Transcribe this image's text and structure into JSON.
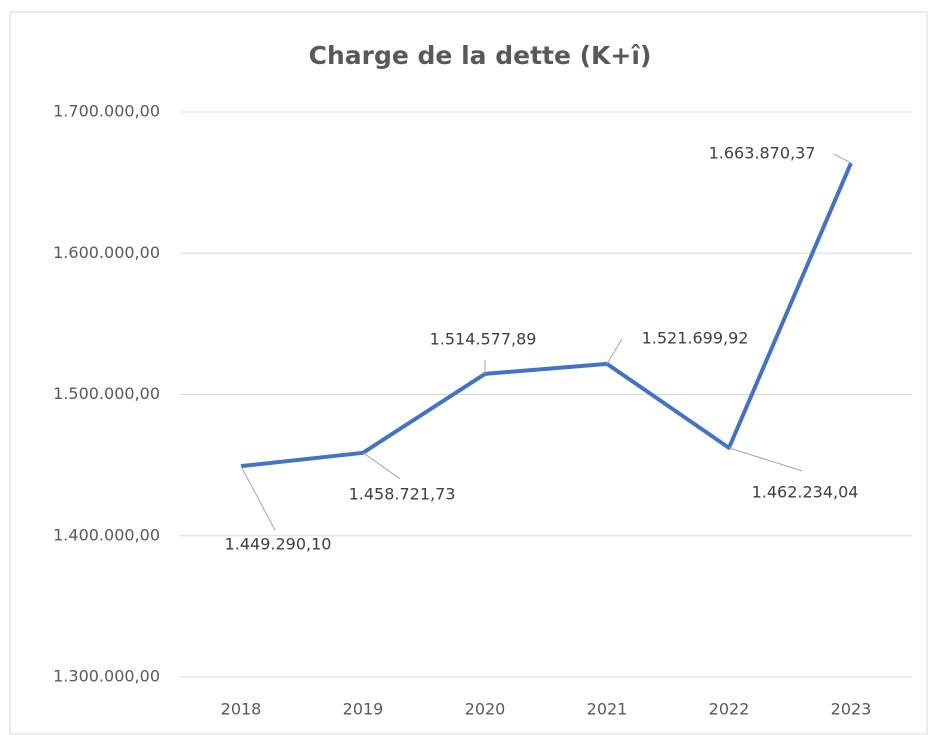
{
  "chart_data": {
    "type": "line",
    "title": "Charge de la dette (K+î)",
    "categories": [
      "2018",
      "2019",
      "2020",
      "2021",
      "2022",
      "2023"
    ],
    "series": [
      {
        "name": "Charge de la dette (K+î)",
        "color": "#4472c4",
        "values": [
          1449290.1,
          1458721.73,
          1514577.89,
          1521699.92,
          1462234.04,
          1663870.37
        ],
        "value_labels": [
          "1.449.290,10",
          "1.458.721,73",
          "1.514.577,89",
          "1.521.699,92",
          "1.462.234,04",
          "1.663.870,37"
        ]
      }
    ],
    "ylim": [
      1300000,
      1700000
    ],
    "yticks": [
      {
        "value": 1300000,
        "label": "1.300.000,00"
      },
      {
        "value": 1400000,
        "label": "1.400.000,00"
      },
      {
        "value": 1500000,
        "label": "1.500.000,00"
      },
      {
        "value": 1600000,
        "label": "1.600.000,00"
      },
      {
        "value": 1700000,
        "label": "1.700.000,00"
      }
    ],
    "grid": true
  }
}
